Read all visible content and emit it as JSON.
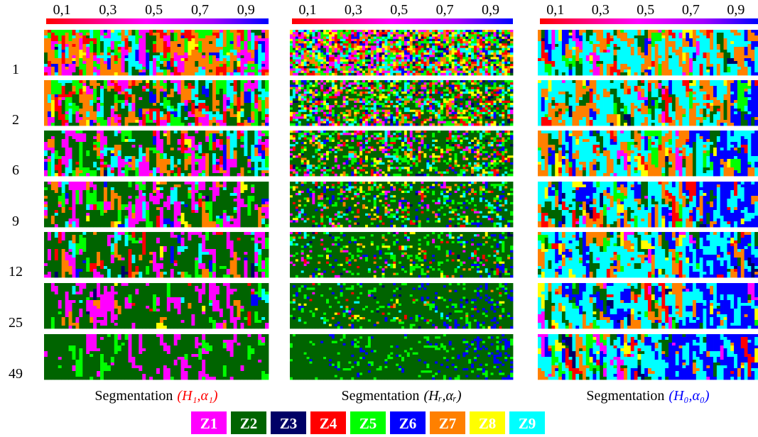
{
  "colorbar_ticks": [
    {
      "value": 0.1,
      "label": "0,1"
    },
    {
      "value": 0.3,
      "label": "0,3"
    },
    {
      "value": 0.5,
      "label": "0,5"
    },
    {
      "value": 0.7,
      "label": "0,7"
    },
    {
      "value": 0.9,
      "label": "0,9"
    }
  ],
  "row_labels": [
    "1",
    "2",
    "6",
    "9",
    "12",
    "25",
    "49"
  ],
  "captions": [
    {
      "text": "Segmentation",
      "math": "(H₁,α₁)",
      "color": "#ff0000"
    },
    {
      "text": "Segmentation",
      "math": "(Hᵣ,αᵣ)",
      "color": "#000000"
    },
    {
      "text": "Segmentation",
      "math": "(H₀,α₀)",
      "color": "#0000ff"
    }
  ],
  "legend": [
    {
      "label": "Z1",
      "color": "#ff00ff"
    },
    {
      "label": "Z2",
      "color": "#006400"
    },
    {
      "label": "Z3",
      "color": "#000066"
    },
    {
      "label": "Z4",
      "color": "#ff0000"
    },
    {
      "label": "Z5",
      "color": "#00ff00"
    },
    {
      "label": "Z6",
      "color": "#0000ff"
    },
    {
      "label": "Z7",
      "color": "#ff8000"
    },
    {
      "label": "Z8",
      "color": "#ffff00"
    },
    {
      "label": "Z9",
      "color": "#00ffff"
    }
  ]
}
